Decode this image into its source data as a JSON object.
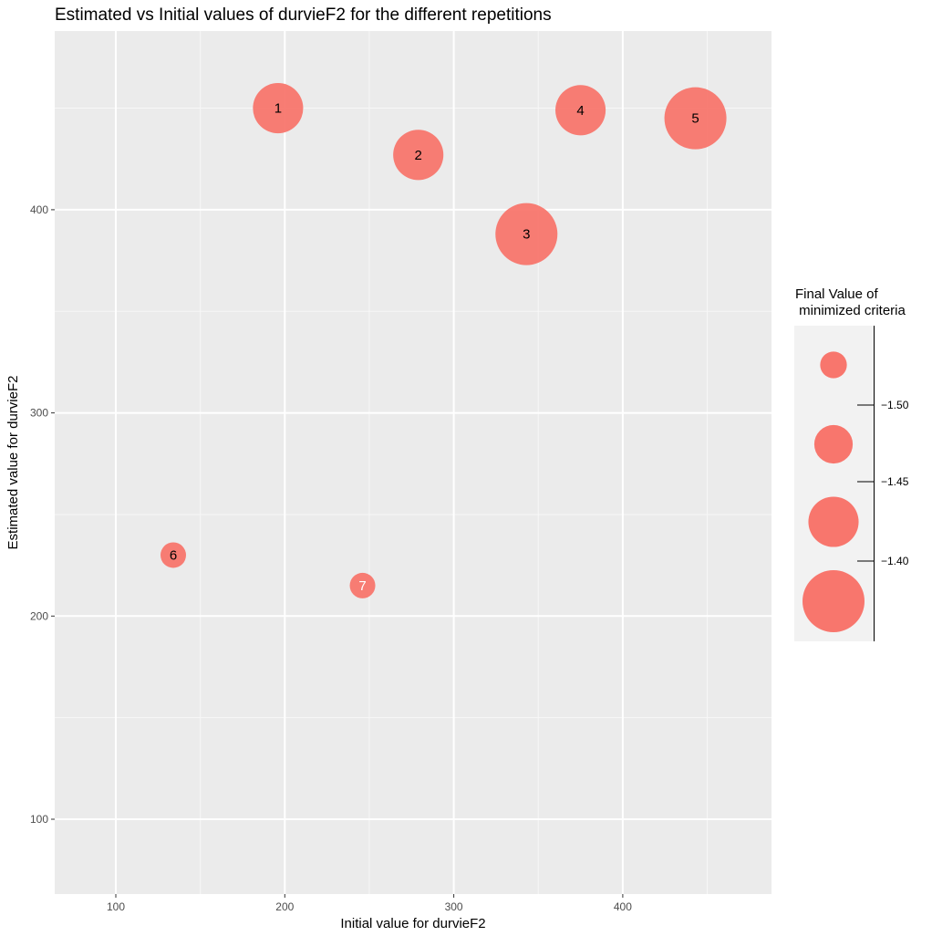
{
  "chart_data": {
    "type": "scatter",
    "title": "Estimated vs Initial values of durvieF2 for the different repetitions",
    "xlabel": "Initial value for durvieF2",
    "ylabel": "Estimated value for durvieF2",
    "xlim": [
      64,
      488
    ],
    "ylim": [
      64,
      489
    ],
    "x_ticks": [
      100,
      200,
      300,
      400
    ],
    "y_ticks": [
      100,
      200,
      300,
      400
    ],
    "grid": true,
    "point_color": "#F8766D",
    "panel_background": "#EBEBEB",
    "points": [
      {
        "label": "1",
        "x": 196,
        "y": 450,
        "size_value": -1.425,
        "label_color": "#000000"
      },
      {
        "label": "2",
        "x": 279,
        "y": 427,
        "size_value": -1.425,
        "label_color": "#000000"
      },
      {
        "label": "3",
        "x": 343,
        "y": 388,
        "size_value": -1.375,
        "label_color": "#000000"
      },
      {
        "label": "4",
        "x": 375,
        "y": 449,
        "size_value": -1.425,
        "label_color": "#000000"
      },
      {
        "label": "5",
        "x": 443,
        "y": 445,
        "size_value": -1.375,
        "label_color": "#000000"
      },
      {
        "label": "6",
        "x": 134,
        "y": 230,
        "size_value": -1.53,
        "label_color": "#000000"
      },
      {
        "label": "7",
        "x": 246,
        "y": 215,
        "size_value": -1.53,
        "label_color": "#ffffff"
      }
    ],
    "legend": {
      "title_line1": "Final Value of",
      "title_line2": " minimized criteria",
      "position": "right",
      "labels": [
        "−1.50",
        "−1.45",
        "−1.40"
      ],
      "entries": [
        -1.525,
        -1.475,
        -1.425,
        -1.375
      ]
    }
  }
}
